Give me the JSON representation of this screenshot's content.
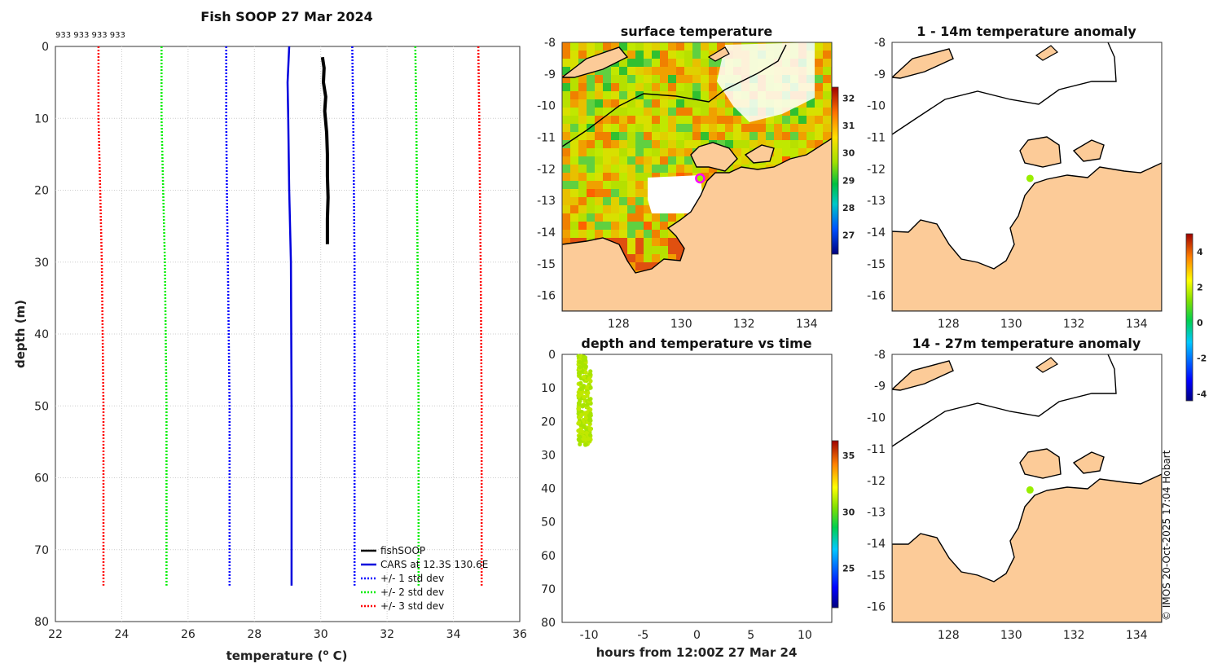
{
  "chart_data": [
    {
      "id": "profile",
      "type": "line",
      "title": "Fish SOOP 27 Mar 2024",
      "ids_label": "933 933 933 933",
      "xlabel": "temperature (",
      "xlabel_sup": "o",
      "xlabel_end": " C)",
      "ylabel": "depth (m)",
      "xlim": [
        22,
        36
      ],
      "ylim": [
        0,
        80
      ],
      "xticks": [
        "22",
        "24",
        "26",
        "28",
        "30",
        "32",
        "34",
        "36"
      ],
      "yticks": [
        "0",
        "10",
        "20",
        "30",
        "40",
        "50",
        "60",
        "70",
        "80"
      ],
      "legend": [
        "fishSOOP",
        "CARS at 12.3S 130.6E",
        "+/- 1 std dev",
        "+/- 2 std dev",
        "+/- 3 std dev"
      ],
      "colors": {
        "fish": "#000000",
        "cars": "#0000dd",
        "std1": "#0000ff",
        "std2": "#00ee00",
        "std3": "#ff0000"
      },
      "series": [
        {
          "name": "fishSOOP",
          "x": [
            30.05,
            30.1,
            30.08,
            30.15,
            30.12,
            30.18,
            30.2,
            30.2,
            30.22,
            30.2,
            30.2
          ],
          "y": [
            1.5,
            3,
            5,
            7,
            9,
            12,
            15,
            18,
            21,
            24,
            27.5
          ]
        },
        {
          "name": "CARS",
          "x": [
            29.05,
            29.0,
            29.02,
            29.05,
            29.1,
            29.12,
            29.12,
            29.12
          ],
          "y": [
            0,
            5,
            10,
            20,
            30,
            50,
            70,
            75
          ]
        },
        {
          "name": "-1std",
          "x": [
            27.15,
            27.15,
            27.17,
            27.2,
            27.25,
            27.25
          ],
          "y": [
            0,
            10,
            20,
            30,
            50,
            75
          ]
        },
        {
          "name": "+1std",
          "x": [
            30.95,
            30.98,
            31.0,
            31.02,
            31.02,
            31.02
          ],
          "y": [
            0,
            10,
            20,
            30,
            50,
            75
          ]
        },
        {
          "name": "-2std",
          "x": [
            25.2,
            25.2,
            25.25,
            25.3,
            25.35,
            25.35
          ],
          "y": [
            0,
            10,
            20,
            30,
            50,
            75
          ]
        },
        {
          "name": "+2std",
          "x": [
            32.85,
            32.88,
            32.9,
            32.92,
            32.95,
            32.95
          ],
          "y": [
            0,
            10,
            20,
            30,
            50,
            75
          ]
        },
        {
          "name": "-3std",
          "x": [
            23.3,
            23.3,
            23.35,
            23.4,
            23.45,
            23.45
          ],
          "y": [
            0,
            10,
            20,
            30,
            50,
            75
          ]
        },
        {
          "name": "+3std",
          "x": [
            34.75,
            34.78,
            34.8,
            34.82,
            34.85,
            34.85
          ],
          "y": [
            0,
            10,
            20,
            30,
            50,
            75
          ]
        }
      ]
    },
    {
      "id": "sst",
      "type": "heatmap",
      "title": "surface temperature",
      "xlim": [
        126.2,
        134.8
      ],
      "ylim": [
        -16.5,
        -8
      ],
      "xticks": [
        "128",
        "130",
        "132",
        "134"
      ],
      "yticks": [
        "-8",
        "-9",
        "-10",
        "-11",
        "-12",
        "-13",
        "-14",
        "-15",
        "-16"
      ],
      "colorbar_ticks": [
        "32",
        "31",
        "30",
        "29",
        "28",
        "27"
      ],
      "marker": {
        "lon": 130.6,
        "lat": -12.3
      }
    },
    {
      "id": "time_depth",
      "type": "scatter",
      "title": "depth and temperature vs time",
      "xlabel": "hours from 12:00Z 27 Mar 24",
      "xlim": [
        -12.5,
        12.5
      ],
      "ylim": [
        0,
        80
      ],
      "xticks": [
        "-10",
        "-5",
        "0",
        "5",
        "10"
      ],
      "yticks": [
        "0",
        "10",
        "20",
        "30",
        "40",
        "50",
        "60",
        "70",
        "80"
      ],
      "colorbar_ticks": [
        "35",
        "30",
        "25"
      ],
      "x_range": [
        -11.0,
        -9.8
      ],
      "depth_range": [
        0.5,
        27
      ]
    },
    {
      "id": "anom1",
      "type": "heatmap",
      "title": "1 - 14m temperature anomaly",
      "xlim": [
        126.2,
        134.8
      ],
      "ylim": [
        -16.5,
        -8
      ],
      "xticks": [
        "128",
        "130",
        "132",
        "134"
      ],
      "yticks": [
        "-8",
        "-9",
        "-10",
        "-11",
        "-12",
        "-13",
        "-14",
        "-15",
        "-16"
      ],
      "marker": {
        "lon": 130.6,
        "lat": -12.3
      }
    },
    {
      "id": "anom2",
      "type": "heatmap",
      "title": "14 - 27m temperature anomaly",
      "xlim": [
        126.2,
        134.8
      ],
      "ylim": [
        -16.5,
        -8
      ],
      "xticks": [
        "128",
        "130",
        "132",
        "134"
      ],
      "yticks": [
        "-8",
        "-9",
        "-10",
        "-11",
        "-12",
        "-13",
        "-14",
        "-15",
        "-16"
      ],
      "marker": {
        "lon": 130.6,
        "lat": -12.3
      },
      "colorbar_ticks": [
        "4",
        "2",
        "0",
        "-2",
        "-4"
      ]
    }
  ],
  "colors": {
    "land": "#fccb98",
    "coast": "#000000",
    "marker_ring": "#ff00ff",
    "marker_fill": "#99ee00"
  },
  "credit": "© IMOS 20-Oct-2025 17:04 Hobart"
}
